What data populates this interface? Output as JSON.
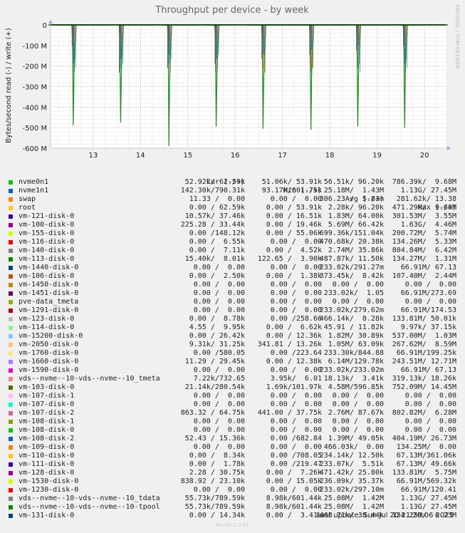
{
  "chart_data": {
    "type": "line",
    "title": "Throughput per device - by week",
    "ylabel": "Bytes/second read (-) / write (+)",
    "side_label": "RRDTOOL / TOBI OETIKER",
    "ylim": [
      -600000000,
      0
    ],
    "yticks": [
      0,
      -100000000,
      -200000000,
      -300000000,
      -400000000,
      -500000000,
      -600000000
    ],
    "ytick_labels": [
      "0",
      "-100 M",
      "-200 M",
      "-300 M",
      "-400 M",
      "-500 M",
      "-600 M"
    ],
    "xlim": [
      12.1,
      20.45
    ],
    "xticks": [
      13,
      14,
      15,
      16,
      17,
      18,
      19,
      20
    ],
    "xtick_labels": [
      "13",
      "14",
      "15",
      "16",
      "17",
      "18",
      "19",
      "20"
    ],
    "grid": true,
    "spike_x": [
      12.62,
      13.62,
      14.64,
      15.64,
      16.63,
      17.64,
      18.63,
      19.62
    ],
    "spike_y": [
      -490000000,
      -475000000,
      -590000000,
      -495000000,
      -505000000,
      -510000000,
      -495000000,
      -500000000
    ],
    "colors": {
      "background": "#f0f0f0",
      "plot": "#ffffff",
      "grid_major": "#e8a0a0",
      "grid_minor": "#e6d4d4",
      "axis": "#cccccc",
      "main_line": "#1d8f1d"
    }
  },
  "legend": {
    "headers": {
      "cur": "Cur (-/+)",
      "min": "Min (-/+)",
      "avg": "Avg (-/+)",
      "max": "Max (-/+)"
    },
    "rows": [
      {
        "name": "nvme0n1",
        "color": "#00cc00",
        "cur": "52.92k/ 62.59k",
        "min": "51.06k/ 53.91k",
        "avg": "56.51k/ 96.20k",
        "max": "786.39k/  9.68M"
      },
      {
        "name": "nvme1n1",
        "color": "#0066b3",
        "cur": "142.30k/790.31k",
        "min": "93.17k/601.75k",
        "avg": "25.18M/  1.43M",
        "max": "1.13G/ 27.45M"
      },
      {
        "name": "swap",
        "color": "#ff8000",
        "cur": "11.33 /  0.00",
        "min": "0.00 /  0.00",
        "avg": "306.23 /  5.83m",
        "max": "281.62k/ 13.38"
      },
      {
        "name": "root",
        "color": "#ffcc00",
        "cur": "0.00 / 62.59k",
        "min": "0.00 / 53.91k",
        "avg": "2.28k/ 96.20k",
        "max": "471.29k/  9.68M"
      },
      {
        "name": "vm-121-disk-0",
        "color": "#330099",
        "cur": "10.57k/ 37.46k",
        "min": "0.00 / 16.51k",
        "avg": "1.83M/ 64.00k",
        "max": "301.53M/  3.55M"
      },
      {
        "name": "vm-100-disk-0",
        "color": "#990099",
        "cur": "225.28 / 33.44k",
        "min": "0.00 / 19.46k",
        "avg": "5.69M/ 66.42k",
        "max": "1.63G/  4.46M"
      },
      {
        "name": "vm-155-disk-0",
        "color": "#ccff00",
        "cur": "0.00 /148.12k",
        "min": "0.00 / 55.06k",
        "avg": "699.36k/151.04k",
        "max": "200.72M/  5.74M"
      },
      {
        "name": "vm-116-disk-0",
        "color": "#ff0000",
        "cur": "0.00 /  6.55k",
        "min": "0.00 /  0.00",
        "avg": "470.68k/ 20.38k",
        "max": "134.26M/  5.33M"
      },
      {
        "name": "vm-140-disk-0",
        "color": "#808080",
        "cur": "0.00 /  7.11k",
        "min": "0.00 /  4.52k",
        "avg": "2.74M/ 35.86k",
        "max": "804.84M/  6.42M"
      },
      {
        "name": "vm-113-disk-0",
        "color": "#008f00",
        "cur": "15.40k/  8.01k",
        "min": "122.65 /  3.90k",
        "avg": "487.87k/ 11.50k",
        "max": "134.27M/  1.31M"
      },
      {
        "name": "vm-1440-disk-0",
        "color": "#00487d",
        "cur": "0.00 /  0.00",
        "min": "0.00 /  0.00",
        "avg": "233.02k/291.27m",
        "max": "66.91M/ 67.13"
      },
      {
        "name": "vm-106-disk-0",
        "color": "#b35a00",
        "cur": "0.00 /  2.50k",
        "min": "0.00 /  1.38k",
        "avg": "373.45k/  8.42k",
        "max": "107.40M/  2.44M"
      },
      {
        "name": "vm-1450-disk-0",
        "color": "#b38f00",
        "cur": "0.00 /  0.00",
        "min": "0.00 /  0.00",
        "avg": "0.00 /  0.00",
        "max": "0.00 /  0.00"
      },
      {
        "name": "vm-1451-disk-0",
        "color": "#6b006b",
        "cur": "0.00 /  0.00",
        "min": "0.00 /  0.00",
        "avg": "233.02k/  1.05",
        "max": "66.91M/273.69"
      },
      {
        "name": "pve-data_tmeta",
        "color": "#8fb300",
        "cur": "0.00 /  0.00",
        "min": "0.00 /  0.00",
        "avg": "0.00 /  0.00",
        "max": "0.00 /  0.00"
      },
      {
        "name": "vm-1291-disk-0",
        "color": "#b30000",
        "cur": "0.00 /  0.00",
        "min": "0.00 /  0.00",
        "avg": "233.02k/279.62m",
        "max": "66.91M/174.53"
      },
      {
        "name": "vm-123-disk-0",
        "color": "#bebebe",
        "cur": "0.00 /  8.78k",
        "min": "0.00 /258.66",
        "avg": "466.14k/  8.28k",
        "max": "133.81M/ 50.01k"
      },
      {
        "name": "vm-114-disk-0",
        "color": "#80ff80",
        "cur": "4.55 /  9.95k",
        "min": "0.00 /  6.62k",
        "avg": "45.91 / 11.82k",
        "max": "9.97k/ 37.15k"
      },
      {
        "name": "vm-15200-disk-0",
        "color": "#80c9ff",
        "cur": "0.00 / 26.42k",
        "min": "0.00 / 12.36k",
        "avg": "1.82M/ 30.89k",
        "max": "537.00M/  1.03M"
      },
      {
        "name": "vm-2050-disk-0",
        "color": "#ffc080",
        "cur": "9.31k/ 31.25k",
        "min": "341.81 / 13.26k",
        "avg": "1.05M/ 63.09k",
        "max": "267.62M/  8.59M"
      },
      {
        "name": "vm-1760-disk-0",
        "color": "#ffe680",
        "cur": "0.00 /580.05",
        "min": "0.00 /223.64",
        "avg": "233.30k/844.88",
        "max": "66.91M/199.25k"
      },
      {
        "name": "vm-1660-disk-0",
        "color": "#aa80ff",
        "cur": "11.29 / 29.45k",
        "min": "0.00 / 12.38k",
        "avg": "6.14M/129.78k",
        "max": "243.51M/ 12.71M"
      },
      {
        "name": "vm-1590-disk-0",
        "color": "#ee00cc",
        "cur": "0.00 /  0.00",
        "min": "0.00 /  0.00",
        "avg": "233.02k/233.02m",
        "max": "66.91M/ 67.13"
      },
      {
        "name": "vds--nvme--10-vds--nvme--10_tmeta",
        "color": "#ff8080",
        "cur": "7.22k/732.65",
        "min": "3.95k/  6.01",
        "avg": "18.13k/  3.41k",
        "max": "319.13k/ 18.26k"
      },
      {
        "name": "vm-103-disk-0",
        "color": "#666600",
        "cur": "21.14k/280.54k",
        "min": "1.69k/101.97k",
        "avg": "4.58M/596.85k",
        "max": "752.09M/ 14.45M"
      },
      {
        "name": "vm-107-disk-1",
        "color": "#ffbfff",
        "cur": "0.00 /  0.00",
        "min": "0.00 /  0.00",
        "avg": "0.00 /  0.00",
        "max": "0.00 /  0.00"
      },
      {
        "name": "vm-107-disk-0",
        "color": "#00ffcc",
        "cur": "0.00 /  0.00",
        "min": "0.00 /  0.00",
        "avg": "0.00 /  0.00",
        "max": "0.00 /  0.00"
      },
      {
        "name": "vm-107-disk-2",
        "color": "#cc6699",
        "cur": "863.32 / 64.75k",
        "min": "441.00 / 37.75k",
        "avg": "2.76M/ 87.67k",
        "max": "802.82M/  6.28M"
      },
      {
        "name": "vm-108-disk-1",
        "color": "#999900",
        "cur": "0.00 /  0.00",
        "min": "0.00 /  0.00",
        "avg": "0.00 /  0.00",
        "max": "0.00 /  0.00"
      },
      {
        "name": "vm-108-disk-0",
        "color": "#00cc00",
        "cur": "0.00 /  0.00",
        "min": "0.00 /  0.00",
        "avg": "0.00 /  0.00",
        "max": "0.00 /  0.00"
      },
      {
        "name": "vm-108-disk-2",
        "color": "#0066b3",
        "cur": "52.43 / 15.36k",
        "min": "0.00 /682.84",
        "avg": "1.39M/ 49.05k",
        "max": "404.19M/ 26.73M"
      },
      {
        "name": "vm-109-disk-0",
        "color": "#ff8000",
        "cur": "0.00 /  0.00",
        "min": "0.00 /  0.00",
        "avg": "466.03k/  0.00",
        "max": "134.25M/  0.00"
      },
      {
        "name": "vm-110-disk-0",
        "color": "#ffcc00",
        "cur": "0.00 /  8.34k",
        "min": "0.00 /708.05",
        "avg": "234.14k/ 12.50k",
        "max": "67.13M/361.06k"
      },
      {
        "name": "vm-111-disk-0",
        "color": "#330099",
        "cur": "0.00 /  1.78k",
        "min": "0.00 /219.47",
        "avg": "233.07k/  5.51k",
        "max": "67.13M/ 49.66k"
      },
      {
        "name": "vm-128-disk-0",
        "color": "#990099",
        "cur": "2.28 / 30.75k",
        "min": "0.00 /  7.26k",
        "avg": "471.42k/ 25.80k",
        "max": "133.81M/  5.75M"
      },
      {
        "name": "vm-1530-disk-0",
        "color": "#ccff00",
        "cur": "838.92 / 23.10k",
        "min": "0.00 / 15.05k",
        "avg": "236.09k/ 35.37k",
        "max": "66.91M/569.32k"
      },
      {
        "name": "vm-1230-disk-0",
        "color": "#ff0000",
        "cur": "0.00 /  0.00",
        "min": "0.00 /  0.00",
        "avg": "233.02k/297.10m",
        "max": "66.91M/120.41"
      },
      {
        "name": "vds--nvme--10-vds--nvme--10_tdata",
        "color": "#808080",
        "cur": "55.73k/789.59k",
        "min": "8.98k/601.44k",
        "avg": "25.08M/  1.42M",
        "max": "1.13G/ 27.45M"
      },
      {
        "name": "vds--nvme--10-vds--nvme--10-tpool",
        "color": "#008f00",
        "cur": "55.73k/789.59k",
        "min": "8.98k/601.44k",
        "avg": "25.08M/  1.42M",
        "max": "1.13G/ 27.45M"
      },
      {
        "name": "vm-131-disk-0",
        "color": "#00487d",
        "cur": "0.00 / 14.34k",
        "min": "0.00 /  3.41k",
        "avg": "468.71k/ 38.44k",
        "max": "134.25M/  6.23M"
      }
    ]
  },
  "last_update": "Last update:  Sun Jul 20 21:20:06 2025",
  "munin_version": "Munin 2.0.42"
}
